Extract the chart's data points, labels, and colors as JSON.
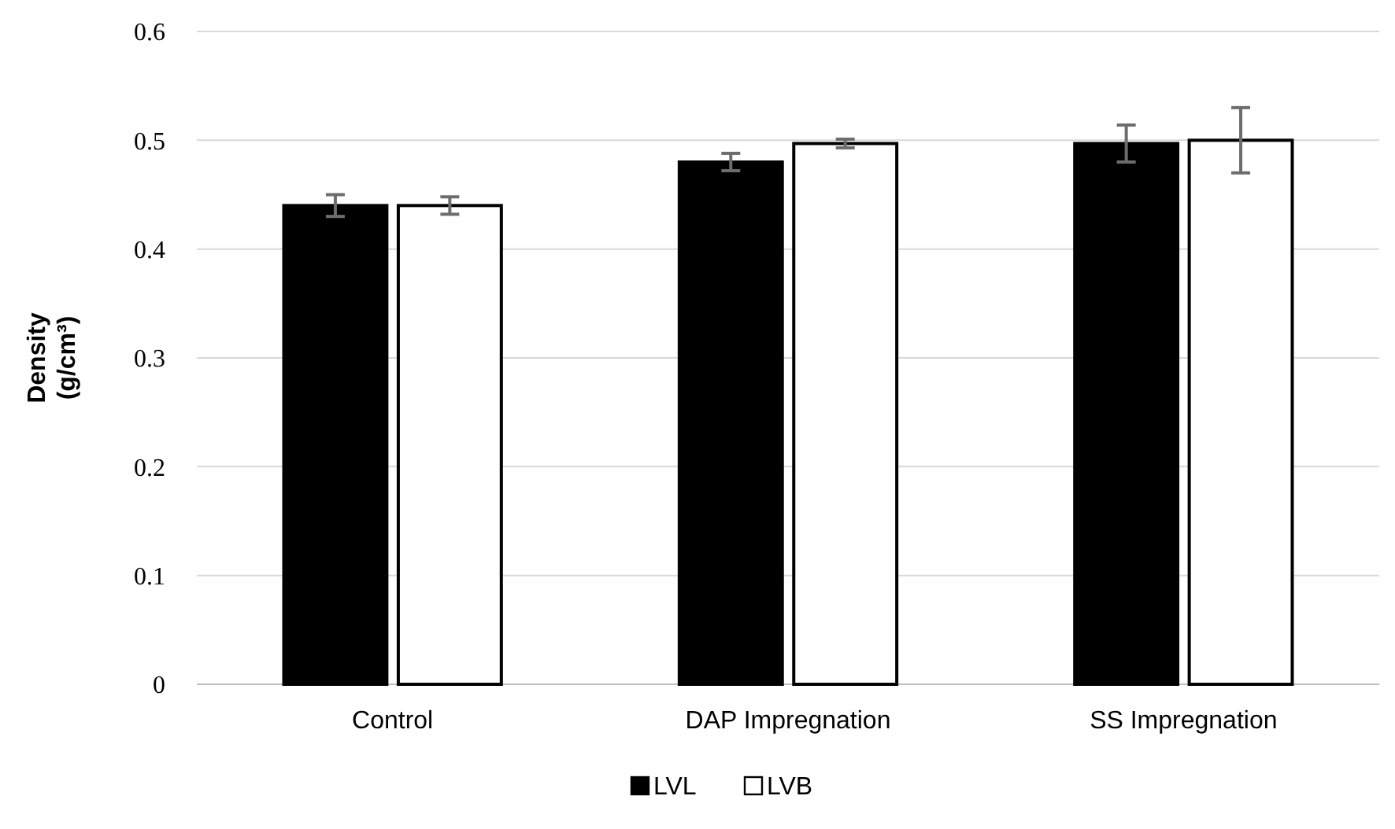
{
  "chart_data": {
    "type": "bar",
    "ylabel": "Density\n(g/cm³)",
    "categories": [
      "Control",
      "DAP Impregnation",
      "SS Impregnation"
    ],
    "series": [
      {
        "name": "LVL",
        "color": "#000000",
        "values": [
          0.44,
          0.48,
          0.497
        ],
        "errors": [
          0.01,
          0.008,
          0.017
        ]
      },
      {
        "name": "LVB",
        "color": "#ffffff",
        "values": [
          0.44,
          0.497,
          0.5
        ],
        "errors": [
          0.008,
          0.004,
          0.03
        ]
      }
    ],
    "ylim": [
      0,
      0.6
    ],
    "yticks": [
      {
        "value": 0,
        "label": "0"
      },
      0.1,
      0.2,
      0.3,
      0.4,
      0.5,
      0.6
    ],
    "grid": "y",
    "legend": "bottom"
  }
}
